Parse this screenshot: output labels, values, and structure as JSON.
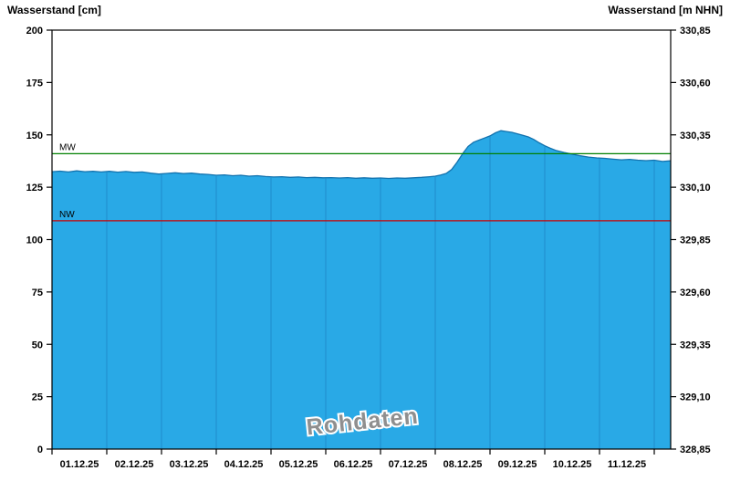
{
  "chart_data": {
    "type": "area",
    "title_left": "Wasserstand [cm]",
    "title_right": "Wasserstand [m NHN]",
    "watermark": "Rohdaten",
    "x_tick_labels": [
      "01.12.25",
      "02.12.25",
      "03.12.25",
      "04.12.25",
      "05.12.25",
      "06.12.25",
      "07.12.25",
      "08.12.25",
      "09.12.25",
      "10.12.25",
      "11.12.25"
    ],
    "x_domain_days": [
      0,
      11.3
    ],
    "left_axis": {
      "title": "Wasserstand [cm]",
      "min": 0,
      "max": 200,
      "step": 25,
      "labels": [
        "0",
        "25",
        "50",
        "75",
        "100",
        "125",
        "150",
        "175",
        "200"
      ]
    },
    "right_axis": {
      "title": "Wasserstand [m NHN]",
      "labels": [
        "328,85",
        "329,10",
        "329,35",
        "329,60",
        "329,85",
        "330,10",
        "330,35",
        "330,60",
        "330,85"
      ]
    },
    "reference_lines": [
      {
        "name": "MW",
        "value_cm": 141,
        "color": "#008000"
      },
      {
        "name": "NW",
        "value_cm": 109,
        "color": "#cc0000"
      }
    ],
    "series": [
      {
        "name": "Wasserstand Rohdaten",
        "unit": "cm",
        "x_days": [
          0,
          0.15,
          0.3,
          0.45,
          0.6,
          0.75,
          0.9,
          1.05,
          1.2,
          1.35,
          1.5,
          1.65,
          1.8,
          1.95,
          2.1,
          2.25,
          2.4,
          2.55,
          2.7,
          2.85,
          3.0,
          3.15,
          3.3,
          3.45,
          3.6,
          3.75,
          3.9,
          4.05,
          4.2,
          4.35,
          4.5,
          4.65,
          4.8,
          4.95,
          5.1,
          5.25,
          5.4,
          5.55,
          5.7,
          5.85,
          6.0,
          6.15,
          6.3,
          6.45,
          6.6,
          6.75,
          6.9,
          7.0,
          7.1,
          7.2,
          7.3,
          7.4,
          7.5,
          7.6,
          7.7,
          7.8,
          7.9,
          8.0,
          8.1,
          8.2,
          8.3,
          8.4,
          8.5,
          8.6,
          8.7,
          8.8,
          8.9,
          9.0,
          9.1,
          9.2,
          9.35,
          9.5,
          9.65,
          9.8,
          9.95,
          10.1,
          10.25,
          10.4,
          10.55,
          10.7,
          10.85,
          11.0,
          11.15,
          11.3
        ],
        "values": [
          132.4,
          132.7,
          132.3,
          132.8,
          132.4,
          132.6,
          132.3,
          132.6,
          132.2,
          132.5,
          132.1,
          132.3,
          131.7,
          131.3,
          131.6,
          131.9,
          131.5,
          131.7,
          131.3,
          131.1,
          130.7,
          130.9,
          130.5,
          130.7,
          130.3,
          130.5,
          130.1,
          129.9,
          130.0,
          129.7,
          129.9,
          129.6,
          129.7,
          129.5,
          129.6,
          129.4,
          129.6,
          129.3,
          129.5,
          129.3,
          129.4,
          129.2,
          129.4,
          129.3,
          129.5,
          129.7,
          130.0,
          130.3,
          130.8,
          131.6,
          133.5,
          137.0,
          141.0,
          144.5,
          146.5,
          147.5,
          148.5,
          149.5,
          151.0,
          152.0,
          151.6,
          151.2,
          150.5,
          149.8,
          149.0,
          147.8,
          146.2,
          144.8,
          143.6,
          142.6,
          141.6,
          140.8,
          140.0,
          139.4,
          139.0,
          138.8,
          138.4,
          138.1,
          138.3,
          137.9,
          137.7,
          137.9,
          137.3,
          137.6
        ]
      }
    ],
    "colors": {
      "fill": "#29a9e6",
      "edge": "#1272ae",
      "separator": "#1b82c4",
      "frame": "#000000",
      "mw": "#008000",
      "nw": "#cc0000"
    }
  }
}
